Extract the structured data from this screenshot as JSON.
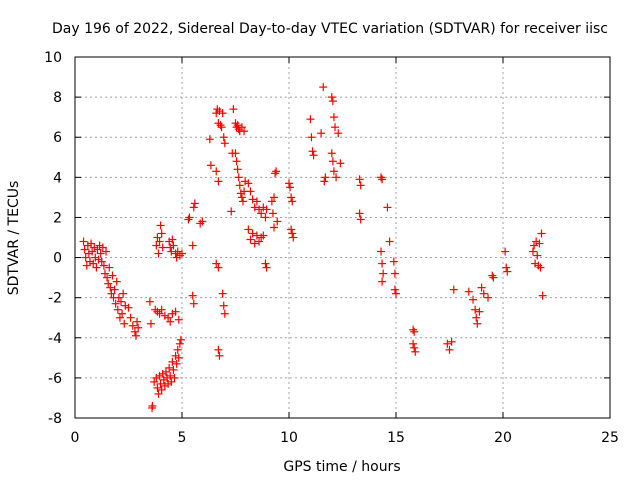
{
  "chart_data": {
    "type": "scatter",
    "title": "Day 196 of 2022, Sidereal Day-to-day VTEC variation (SDTVAR) for receiver iisc",
    "xlabel": "GPS time / hours",
    "ylabel": "SDTVAR / TECUs",
    "xlim": [
      0,
      25
    ],
    "ylim": [
      -8,
      10
    ],
    "x_ticks": [
      "0",
      "5",
      "10",
      "15",
      "20",
      "25"
    ],
    "y_ticks": [
      "-8",
      "-6",
      "-4",
      "-2",
      "0",
      "2",
      "4",
      "6",
      "8",
      "10"
    ],
    "grid": true,
    "marker": "+",
    "colors": {
      "points": "#ff0000",
      "grid": "#a0a0a0",
      "frame": "#000000"
    },
    "series": [
      {
        "name": "receiver iisc",
        "points": [
          [
            0.4,
            0.8
          ],
          [
            0.45,
            0.4
          ],
          [
            0.5,
            0.0
          ],
          [
            0.55,
            -0.4
          ],
          [
            0.6,
            0.6
          ],
          [
            0.65,
            0.2
          ],
          [
            0.7,
            -0.2
          ],
          [
            0.75,
            0.7
          ],
          [
            0.8,
            0.3
          ],
          [
            0.85,
            -0.3
          ],
          [
            0.9,
            0.5
          ],
          [
            0.95,
            0.0
          ],
          [
            1.0,
            -0.5
          ],
          [
            1.05,
            0.4
          ],
          [
            1.1,
            -0.1
          ],
          [
            1.15,
            0.6
          ],
          [
            1.2,
            0.2
          ],
          [
            1.25,
            -0.2
          ],
          [
            1.3,
            0.5
          ],
          [
            1.35,
            -0.4
          ],
          [
            1.4,
            -0.8
          ],
          [
            1.45,
            0.3
          ],
          [
            1.5,
            -1.0
          ],
          [
            1.55,
            -1.3
          ],
          [
            1.6,
            -0.5
          ],
          [
            1.65,
            -1.5
          ],
          [
            1.7,
            -1.8
          ],
          [
            1.75,
            -0.9
          ],
          [
            1.8,
            -2.0
          ],
          [
            1.85,
            -1.6
          ],
          [
            1.9,
            -2.3
          ],
          [
            1.95,
            -1.2
          ],
          [
            2.0,
            -2.6
          ],
          [
            2.05,
            -2.0
          ],
          [
            2.1,
            -3.0
          ],
          [
            2.15,
            -2.2
          ],
          [
            2.2,
            -2.8
          ],
          [
            2.25,
            -1.8
          ],
          [
            2.3,
            -3.3
          ],
          [
            2.35,
            -2.4
          ],
          [
            2.5,
            -2.5
          ],
          [
            2.6,
            -3.0
          ],
          [
            2.7,
            -3.4
          ],
          [
            2.8,
            -3.7
          ],
          [
            2.85,
            -3.9
          ],
          [
            2.9,
            -3.2
          ],
          [
            2.95,
            -3.5
          ],
          [
            3.5,
            -2.2
          ],
          [
            3.55,
            -3.3
          ],
          [
            3.6,
            -7.5
          ],
          [
            3.62,
            -7.4
          ],
          [
            3.7,
            -6.2
          ],
          [
            3.8,
            -6.0
          ],
          [
            3.85,
            -6.5
          ],
          [
            3.9,
            -6.8
          ],
          [
            3.95,
            -5.9
          ],
          [
            4.0,
            -6.3
          ],
          [
            4.05,
            -6.6
          ],
          [
            4.1,
            -5.8
          ],
          [
            4.15,
            -6.1
          ],
          [
            4.2,
            -6.4
          ],
          [
            4.25,
            -5.7
          ],
          [
            4.3,
            -6.0
          ],
          [
            4.35,
            -6.3
          ],
          [
            4.4,
            -5.5
          ],
          [
            4.45,
            -5.9
          ],
          [
            4.5,
            -6.2
          ],
          [
            4.55,
            -5.2
          ],
          [
            4.6,
            -5.6
          ],
          [
            4.65,
            -6.0
          ],
          [
            4.7,
            -4.9
          ],
          [
            4.75,
            -5.3
          ],
          [
            4.8,
            -4.6
          ],
          [
            4.85,
            -5.0
          ],
          [
            4.9,
            -4.3
          ],
          [
            4.95,
            -4.1
          ],
          [
            3.8,
            0.6
          ],
          [
            3.85,
            1.0
          ],
          [
            3.9,
            0.2
          ],
          [
            3.95,
            0.8
          ],
          [
            4.0,
            1.6
          ],
          [
            4.05,
            1.2
          ],
          [
            4.1,
            0.5
          ],
          [
            3.75,
            -2.6
          ],
          [
            3.85,
            -2.7
          ],
          [
            3.95,
            -2.8
          ],
          [
            4.05,
            -2.6
          ],
          [
            4.2,
            -2.9
          ],
          [
            4.35,
            -3.0
          ],
          [
            4.45,
            -3.2
          ],
          [
            4.55,
            -2.8
          ],
          [
            4.7,
            -2.7
          ],
          [
            4.85,
            -3.1
          ],
          [
            4.4,
            0.8
          ],
          [
            4.45,
            0.5
          ],
          [
            4.5,
            0.3
          ],
          [
            4.55,
            0.9
          ],
          [
            4.6,
            0.6
          ],
          [
            4.7,
            0.2
          ],
          [
            4.75,
            0.0
          ],
          [
            4.8,
            0.3
          ],
          [
            4.9,
            0.1
          ],
          [
            5.0,
            0.2
          ],
          [
            5.3,
            1.9
          ],
          [
            5.35,
            2.0
          ],
          [
            5.5,
            0.6
          ],
          [
            5.55,
            2.5
          ],
          [
            5.6,
            2.7
          ],
          [
            5.5,
            -1.9
          ],
          [
            5.55,
            -2.3
          ],
          [
            5.85,
            1.7
          ],
          [
            5.95,
            1.8
          ],
          [
            6.3,
            5.9
          ],
          [
            6.35,
            4.6
          ],
          [
            6.6,
            7.2
          ],
          [
            6.65,
            7.4
          ],
          [
            6.7,
            6.7
          ],
          [
            6.75,
            7.3
          ],
          [
            6.6,
            -0.3
          ],
          [
            6.7,
            -0.5
          ],
          [
            6.7,
            -4.6
          ],
          [
            6.75,
            -4.9
          ],
          [
            6.6,
            4.3
          ],
          [
            6.7,
            3.8
          ],
          [
            6.8,
            6.6
          ],
          [
            6.85,
            6.5
          ],
          [
            6.9,
            -1.8
          ],
          [
            6.95,
            -2.4
          ],
          [
            7.0,
            -2.8
          ],
          [
            6.95,
            6.0
          ],
          [
            7.0,
            5.7
          ],
          [
            6.9,
            7.2
          ],
          [
            7.3,
            2.3
          ],
          [
            7.35,
            5.2
          ],
          [
            7.4,
            7.4
          ],
          [
            7.5,
            6.7
          ],
          [
            7.55,
            6.5
          ],
          [
            7.6,
            6.6
          ],
          [
            7.65,
            6.4
          ],
          [
            7.7,
            6.3
          ],
          [
            7.8,
            6.5
          ],
          [
            7.9,
            6.3
          ],
          [
            7.5,
            5.2
          ],
          [
            7.55,
            4.8
          ],
          [
            7.6,
            4.4
          ],
          [
            7.65,
            4.0
          ],
          [
            7.7,
            3.6
          ],
          [
            7.75,
            3.2
          ],
          [
            7.8,
            3.0
          ],
          [
            7.85,
            2.8
          ],
          [
            7.9,
            3.3
          ],
          [
            7.95,
            3.8
          ],
          [
            8.1,
            3.7
          ],
          [
            8.2,
            3.3
          ],
          [
            8.3,
            2.9
          ],
          [
            8.4,
            2.5
          ],
          [
            8.5,
            2.8
          ],
          [
            8.6,
            2.4
          ],
          [
            8.7,
            2.2
          ],
          [
            8.8,
            2.5
          ],
          [
            8.9,
            2.0
          ],
          [
            8.95,
            2.4
          ],
          [
            8.1,
            1.4
          ],
          [
            8.2,
            0.9
          ],
          [
            8.3,
            1.2
          ],
          [
            8.4,
            0.7
          ],
          [
            8.5,
            1.1
          ],
          [
            8.6,
            0.8
          ],
          [
            8.7,
            1.0
          ],
          [
            8.8,
            1.1
          ],
          [
            8.9,
            -0.3
          ],
          [
            8.95,
            -0.5
          ],
          [
            9.2,
            2.8
          ],
          [
            9.25,
            2.2
          ],
          [
            9.3,
            3.0
          ],
          [
            9.35,
            4.2
          ],
          [
            9.4,
            4.3
          ],
          [
            9.45,
            1.8
          ],
          [
            9.3,
            1.5
          ],
          [
            10.0,
            3.7
          ],
          [
            10.05,
            3.5
          ],
          [
            10.1,
            3.0
          ],
          [
            10.15,
            2.8
          ],
          [
            10.1,
            1.4
          ],
          [
            10.15,
            1.2
          ],
          [
            10.2,
            1.0
          ],
          [
            11.0,
            6.9
          ],
          [
            11.05,
            6.0
          ],
          [
            11.1,
            5.3
          ],
          [
            11.15,
            5.1
          ],
          [
            11.5,
            6.2
          ],
          [
            11.6,
            8.5
          ],
          [
            11.7,
            4.0
          ],
          [
            11.65,
            3.8
          ],
          [
            12.0,
            8.0
          ],
          [
            12.05,
            7.8
          ],
          [
            12.1,
            7.0
          ],
          [
            12.15,
            6.5
          ],
          [
            12.0,
            5.2
          ],
          [
            12.05,
            4.8
          ],
          [
            12.1,
            4.3
          ],
          [
            12.2,
            4.0
          ],
          [
            12.3,
            6.2
          ],
          [
            12.4,
            4.7
          ],
          [
            13.3,
            3.9
          ],
          [
            13.35,
            3.6
          ],
          [
            13.3,
            2.2
          ],
          [
            13.35,
            1.9
          ],
          [
            14.3,
            4.0
          ],
          [
            14.35,
            3.9
          ],
          [
            14.3,
            0.3
          ],
          [
            14.35,
            -0.3
          ],
          [
            14.4,
            -0.8
          ],
          [
            14.35,
            -1.2
          ],
          [
            14.6,
            2.5
          ],
          [
            14.7,
            0.8
          ],
          [
            14.9,
            -0.2
          ],
          [
            14.95,
            -0.8
          ],
          [
            14.95,
            -1.6
          ],
          [
            15.0,
            -1.8
          ],
          [
            15.8,
            -3.6
          ],
          [
            15.85,
            -3.7
          ],
          [
            15.8,
            -4.3
          ],
          [
            15.85,
            -4.5
          ],
          [
            15.9,
            -4.7
          ],
          [
            17.4,
            -4.3
          ],
          [
            17.5,
            -4.6
          ],
          [
            17.6,
            -4.2
          ],
          [
            17.7,
            -1.6
          ],
          [
            18.4,
            -1.7
          ],
          [
            18.6,
            -2.1
          ],
          [
            18.7,
            -2.6
          ],
          [
            18.75,
            -3.0
          ],
          [
            18.8,
            -3.3
          ],
          [
            18.9,
            -2.7
          ],
          [
            19.0,
            -1.5
          ],
          [
            19.1,
            -1.8
          ],
          [
            19.3,
            -2.0
          ],
          [
            19.5,
            -0.9
          ],
          [
            19.55,
            -1.0
          ],
          [
            20.1,
            0.3
          ],
          [
            20.15,
            -0.5
          ],
          [
            20.2,
            -0.7
          ],
          [
            21.4,
            0.3
          ],
          [
            21.45,
            0.6
          ],
          [
            21.5,
            -0.3
          ],
          [
            21.55,
            0.8
          ],
          [
            21.6,
            0.1
          ],
          [
            21.65,
            -0.4
          ],
          [
            21.7,
            0.7
          ],
          [
            21.75,
            -0.5
          ],
          [
            21.8,
            1.2
          ],
          [
            21.85,
            -1.9
          ]
        ]
      }
    ]
  }
}
